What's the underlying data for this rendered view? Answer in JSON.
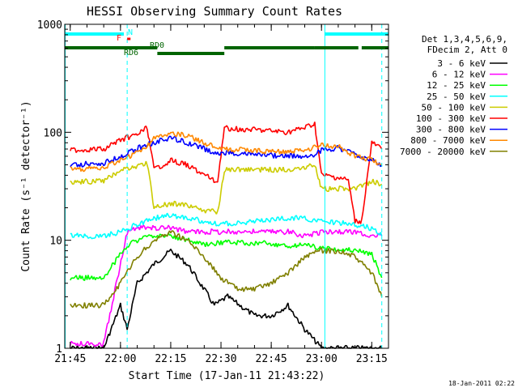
{
  "chart_data": {
    "type": "line",
    "title": "HESSI Observing Summary Count Rates",
    "xlabel": "Start Time (17-Jan-11 21:43:22)",
    "ylabel": "Count Rate (s⁻¹ detector⁻¹)",
    "yscale": "log",
    "ylim": [
      1,
      1000
    ],
    "xlim": [
      "21:43:22",
      "23:20:00"
    ],
    "x_ticks": [
      "21:45",
      "22:00",
      "22:15",
      "22:30",
      "22:45",
      "23:00",
      "23:15"
    ],
    "y_ticks": [
      "1",
      "10",
      "100",
      "1000"
    ],
    "grid": false,
    "legend_position": "right",
    "legend_header": [
      "Det 1,3,4,5,6,9,",
      "FDecim 2, Att 0"
    ],
    "timestamp": "18-Jan-2011 02:22",
    "series": [
      {
        "name": "3 - 6 keV",
        "color": "#000000",
        "x": [
          "21:45",
          "21:55",
          "22:00",
          "22:02",
          "22:05",
          "22:10",
          "22:15",
          "22:20",
          "22:25",
          "22:28",
          "22:32",
          "22:40",
          "22:45",
          "22:50",
          "22:55",
          "23:00",
          "23:10",
          "23:15",
          "23:18"
        ],
        "y": [
          1,
          1,
          2.5,
          1.5,
          4,
          6,
          8,
          6,
          3.5,
          2.5,
          3,
          2,
          2,
          2.5,
          1.5,
          1,
          1,
          1,
          1
        ]
      },
      {
        "name": "6 - 12 keV",
        "color": "#ff00ff",
        "x": [
          "21:45",
          "21:55",
          "22:02",
          "22:05",
          "22:10",
          "22:15",
          "22:20",
          "22:25",
          "22:30",
          "22:40",
          "22:50",
          "22:55",
          "23:00",
          "23:10",
          "23:15",
          "23:18"
        ],
        "y": [
          1.1,
          1.1,
          12,
          13,
          13,
          13,
          12,
          12,
          12,
          12,
          12,
          11,
          12,
          12,
          11,
          11
        ]
      },
      {
        "name": "12 - 25 keV",
        "color": "#00ff00",
        "x": [
          "21:45",
          "21:55",
          "22:02",
          "22:05",
          "22:10",
          "22:15",
          "22:20",
          "22:25",
          "22:30",
          "22:40",
          "22:50",
          "22:55",
          "23:00",
          "23:10",
          "23:15",
          "23:18"
        ],
        "y": [
          4.5,
          4.5,
          9,
          10,
          11,
          11,
          10,
          9,
          9.5,
          9.5,
          9,
          9,
          8.5,
          8,
          7.5,
          4.5
        ]
      },
      {
        "name": "25 - 50 keV",
        "color": "#00ffff",
        "x": [
          "21:45",
          "21:55",
          "22:00",
          "22:05",
          "22:10",
          "22:15",
          "22:20",
          "22:25",
          "22:30",
          "22:40",
          "22:50",
          "22:55",
          "23:00",
          "23:10",
          "23:15",
          "23:18"
        ],
        "y": [
          11,
          11,
          12,
          14,
          16,
          17,
          16,
          15,
          14,
          15,
          16,
          16,
          15,
          14,
          13,
          11
        ]
      },
      {
        "name": "50 - 100 keV",
        "color": "#cccc00",
        "x": [
          "21:45",
          "21:55",
          "22:00",
          "22:05",
          "22:08",
          "22:10",
          "22:15",
          "22:20",
          "22:25",
          "22:29",
          "22:31",
          "22:40",
          "22:50",
          "22:55",
          "22:58",
          "23:00",
          "23:10",
          "23:15",
          "23:18"
        ],
        "y": [
          35,
          35,
          45,
          48,
          52,
          20,
          22,
          21,
          19,
          18,
          45,
          45,
          45,
          48,
          50,
          30,
          30,
          35,
          33
        ]
      },
      {
        "name": "100 - 300 keV",
        "color": "#ff0000",
        "x": [
          "21:45",
          "21:55",
          "22:00",
          "22:05",
          "22:08",
          "22:10",
          "22:15",
          "22:20",
          "22:25",
          "22:29",
          "22:31",
          "22:40",
          "22:50",
          "22:55",
          "22:58",
          "23:00",
          "23:05",
          "23:08",
          "23:10",
          "23:12",
          "23:15",
          "23:18"
        ],
        "y": [
          68,
          70,
          85,
          95,
          110,
          45,
          55,
          50,
          40,
          35,
          110,
          105,
          100,
          110,
          120,
          40,
          38,
          36,
          15,
          15,
          80,
          70
        ]
      },
      {
        "name": "300 - 800 keV",
        "color": "#0000ff",
        "x": [
          "21:45",
          "21:55",
          "22:00",
          "22:05",
          "22:08",
          "22:10",
          "22:15",
          "22:20",
          "22:25",
          "22:29",
          "22:31",
          "22:40",
          "22:50",
          "22:55",
          "22:58",
          "23:00",
          "23:05",
          "23:10",
          "23:15",
          "23:18"
        ],
        "y": [
          50,
          52,
          60,
          70,
          78,
          80,
          90,
          80,
          70,
          62,
          65,
          62,
          60,
          60,
          62,
          68,
          72,
          62,
          55,
          50
        ]
      },
      {
        "name": "800 - 7000 keV",
        "color": "#ff8800",
        "x": [
          "21:45",
          "21:55",
          "22:00",
          "22:05",
          "22:08",
          "22:10",
          "22:15",
          "22:20",
          "22:25",
          "22:29",
          "22:31",
          "22:40",
          "22:50",
          "22:55",
          "22:58",
          "23:00",
          "23:05",
          "23:10",
          "23:15",
          "23:18"
        ],
        "y": [
          45,
          47,
          55,
          65,
          75,
          88,
          100,
          92,
          80,
          70,
          70,
          68,
          65,
          68,
          72,
          75,
          75,
          60,
          55,
          50
        ]
      },
      {
        "name": "7000 - 20000 keV",
        "color": "#808000",
        "x": [
          "21:45",
          "21:55",
          "22:00",
          "22:05",
          "22:10",
          "22:15",
          "22:20",
          "22:25",
          "22:30",
          "22:35",
          "22:40",
          "22:45",
          "22:50",
          "22:55",
          "23:00",
          "23:05",
          "23:10",
          "23:15",
          "23:18"
        ],
        "y": [
          2.5,
          2.5,
          4,
          7,
          10,
          12,
          10,
          7,
          4.5,
          3.5,
          3.5,
          4,
          5,
          7,
          8,
          8,
          7,
          5,
          3
        ]
      }
    ],
    "annotations": [
      {
        "label": "N",
        "color": "#00ffff"
      },
      {
        "label": "F",
        "color": "#ff0000"
      },
      {
        "label": "RD0",
        "color": "#006400"
      },
      {
        "label": "RD6",
        "color": "#006400"
      }
    ],
    "status_bars": [
      {
        "name": "N",
        "color": "#00ffff",
        "intervals": [
          [
            "21:43:22",
            "22:01"
          ],
          [
            "23:01",
            "23:20"
          ]
        ]
      },
      {
        "name": "F",
        "color": "#ff0000",
        "intervals": [
          [
            "22:02",
            "22:03"
          ]
        ]
      },
      {
        "name": "RD",
        "color": "#006400",
        "intervals": [
          [
            "21:43:22",
            "22:11"
          ],
          [
            "22:11",
            "22:31"
          ],
          [
            "22:31",
            "22:58"
          ],
          [
            "22:58",
            "23:11"
          ],
          [
            "23:12",
            "23:20"
          ]
        ]
      }
    ],
    "vlines": [
      {
        "x": "21:43:30",
        "color": "#00ffff",
        "style": "solid"
      },
      {
        "x": "22:02",
        "color": "#00ffff",
        "style": "dashed"
      },
      {
        "x": "23:01",
        "color": "#00ffff",
        "style": "solid"
      },
      {
        "x": "23:18",
        "color": "#00ffff",
        "style": "dashed"
      }
    ]
  }
}
